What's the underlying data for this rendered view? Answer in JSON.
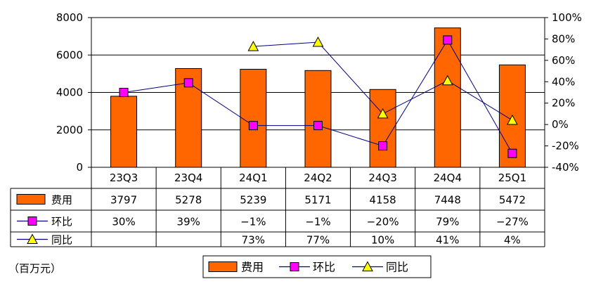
{
  "chart_data": {
    "type": "bar",
    "unit_label": "（百万元）",
    "categories": [
      "23Q3",
      "23Q4",
      "24Q1",
      "24Q2",
      "24Q3",
      "24Q4",
      "25Q1"
    ],
    "left_axis": {
      "min": 0,
      "max": 8000,
      "ticks": [
        "0",
        "2000",
        "4000",
        "6000",
        "8000"
      ],
      "tick_values": [
        0,
        2000,
        4000,
        6000,
        8000
      ]
    },
    "right_axis": {
      "min": -40,
      "max": 100,
      "ticks": [
        "-40%",
        "-20%",
        "0%",
        "20%",
        "40%",
        "60%",
        "80%",
        "100%"
      ],
      "tick_values": [
        -40,
        -20,
        0,
        20,
        40,
        60,
        80,
        100
      ]
    },
    "grid": true,
    "series": [
      {
        "name": "费用",
        "kind": "bar",
        "axis": "left",
        "color": "#FF6600",
        "values": [
          3797,
          5278,
          5239,
          5171,
          4158,
          7448,
          5472
        ]
      },
      {
        "name": "环比",
        "kind": "line",
        "axis": "right",
        "line_color": "#000080",
        "marker": "square",
        "marker_color": "#FF00FF",
        "values": [
          30,
          39,
          -1,
          -1,
          -20,
          79,
          -27
        ]
      },
      {
        "name": "同比",
        "kind": "line",
        "axis": "right",
        "line_color": "#000080",
        "marker": "triangle",
        "marker_color": "#FFFF00",
        "values": [
          null,
          null,
          73,
          77,
          10,
          41,
          4
        ]
      }
    ],
    "table_rows": [
      {
        "label": "费用",
        "cells": [
          "3797",
          "5278",
          "5239",
          "5171",
          "4158",
          "7448",
          "5472"
        ]
      },
      {
        "label": "环比",
        "cells": [
          "30%",
          "39%",
          "−1%",
          "−1%",
          "−20%",
          "79%",
          "−27%"
        ]
      },
      {
        "label": "同比",
        "cells": [
          "",
          "",
          "73%",
          "77%",
          "10%",
          "41%",
          "4%"
        ]
      }
    ],
    "legend": [
      "费用",
      "环比",
      "同比"
    ]
  }
}
